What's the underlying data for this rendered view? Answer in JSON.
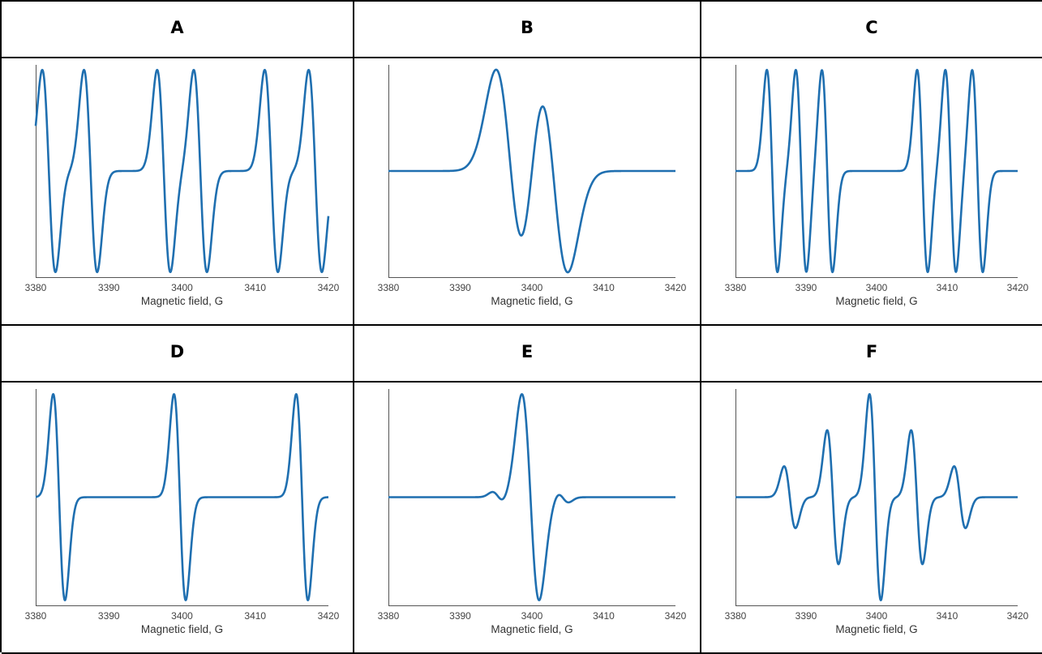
{
  "panels": [
    {
      "label": "A",
      "xlabel": "Magnetic field, G"
    },
    {
      "label": "B",
      "xlabel": "Magnetic field, G"
    },
    {
      "label": "C",
      "xlabel": "Magnetic field, G"
    },
    {
      "label": "D",
      "xlabel": "Magnetic field, G"
    },
    {
      "label": "E",
      "xlabel": "Magnetic field, G"
    },
    {
      "label": "F",
      "xlabel": "Magnetic field, G"
    }
  ],
  "colors": {
    "curve": "#1f6fb0",
    "grid_border": "#000000"
  },
  "chart_data": [
    {
      "type": "line",
      "panel": "A",
      "xlabel": "Magnetic field, G",
      "xticks": [
        3380,
        3390,
        3400,
        3410,
        3420
      ],
      "xlim": [
        3380,
        3420
      ],
      "ylim": [
        -1.05,
        1.05
      ],
      "lines": [
        {
          "center": 3381.8,
          "amplitude": 1.0,
          "width": 0.9
        },
        {
          "center": 3387.5,
          "amplitude": 1.0,
          "width": 0.9
        },
        {
          "center": 3397.5,
          "amplitude": 1.0,
          "width": 0.9
        },
        {
          "center": 3402.5,
          "amplitude": 1.0,
          "width": 0.9
        },
        {
          "center": 3412.2,
          "amplitude": 1.0,
          "width": 0.9
        },
        {
          "center": 3418.2,
          "amplitude": 1.0,
          "width": 0.9
        }
      ]
    },
    {
      "type": "line",
      "panel": "B",
      "xlabel": "Magnetic field, G",
      "xticks": [
        3380,
        3390,
        3400,
        3410,
        3420
      ],
      "xlim": [
        3380,
        3420
      ],
      "ylim": [
        -1.05,
        1.05
      ],
      "lines": [
        {
          "center": 3397.0,
          "amplitude": 1.0,
          "width": 2.0
        },
        {
          "center": 3403.0,
          "amplitude": 1.0,
          "width": 2.0
        }
      ]
    },
    {
      "type": "line",
      "panel": "C",
      "xlabel": "Magnetic field, G",
      "xticks": [
        3380,
        3390,
        3400,
        3410,
        3420
      ],
      "xlim": [
        3380,
        3420
      ],
      "ylim": [
        -1.05,
        1.05
      ],
      "lines": [
        {
          "center": 3385.2,
          "amplitude": 1.0,
          "width": 0.75
        },
        {
          "center": 3389.3,
          "amplitude": 1.0,
          "width": 0.75
        },
        {
          "center": 3393.0,
          "amplitude": 1.0,
          "width": 0.75
        },
        {
          "center": 3406.5,
          "amplitude": 1.0,
          "width": 0.75
        },
        {
          "center": 3410.5,
          "amplitude": 1.0,
          "width": 0.75
        },
        {
          "center": 3414.3,
          "amplitude": 1.0,
          "width": 0.75
        }
      ]
    },
    {
      "type": "line",
      "panel": "D",
      "xlabel": "Magnetic field, G",
      "xticks": [
        3380,
        3390,
        3400,
        3410,
        3420
      ],
      "xlim": [
        3380,
        3420
      ],
      "ylim": [
        -1.05,
        1.05
      ],
      "lines": [
        {
          "center": 3383.2,
          "amplitude": 1.0,
          "width": 0.8
        },
        {
          "center": 3399.7,
          "amplitude": 1.0,
          "width": 0.8
        },
        {
          "center": 3416.4,
          "amplitude": 1.0,
          "width": 0.8
        }
      ]
    },
    {
      "type": "line",
      "panel": "E",
      "xlabel": "Magnetic field, G",
      "xticks": [
        3380,
        3390,
        3400,
        3410,
        3420
      ],
      "xlim": [
        3380,
        3420
      ],
      "ylim": [
        -1.05,
        1.05
      ],
      "lines": [
        {
          "center": 3395.3,
          "amplitude": 0.05,
          "width": 0.8
        },
        {
          "center": 3399.8,
          "amplitude": 1.0,
          "width": 1.2
        },
        {
          "center": 3404.3,
          "amplitude": 0.05,
          "width": 0.8
        }
      ]
    },
    {
      "type": "line",
      "panel": "F",
      "xlabel": "Magnetic field, G",
      "xticks": [
        3380,
        3390,
        3400,
        3410,
        3420
      ],
      "xlim": [
        3380,
        3420
      ],
      "ylim": [
        -1.05,
        1.05
      ],
      "lines": [
        {
          "center": 3387.7,
          "amplitude": 0.3,
          "width": 0.8
        },
        {
          "center": 3393.8,
          "amplitude": 0.65,
          "width": 0.8
        },
        {
          "center": 3399.8,
          "amplitude": 1.0,
          "width": 0.8
        },
        {
          "center": 3405.7,
          "amplitude": 0.65,
          "width": 0.8
        },
        {
          "center": 3411.8,
          "amplitude": 0.3,
          "width": 0.8
        }
      ]
    }
  ]
}
